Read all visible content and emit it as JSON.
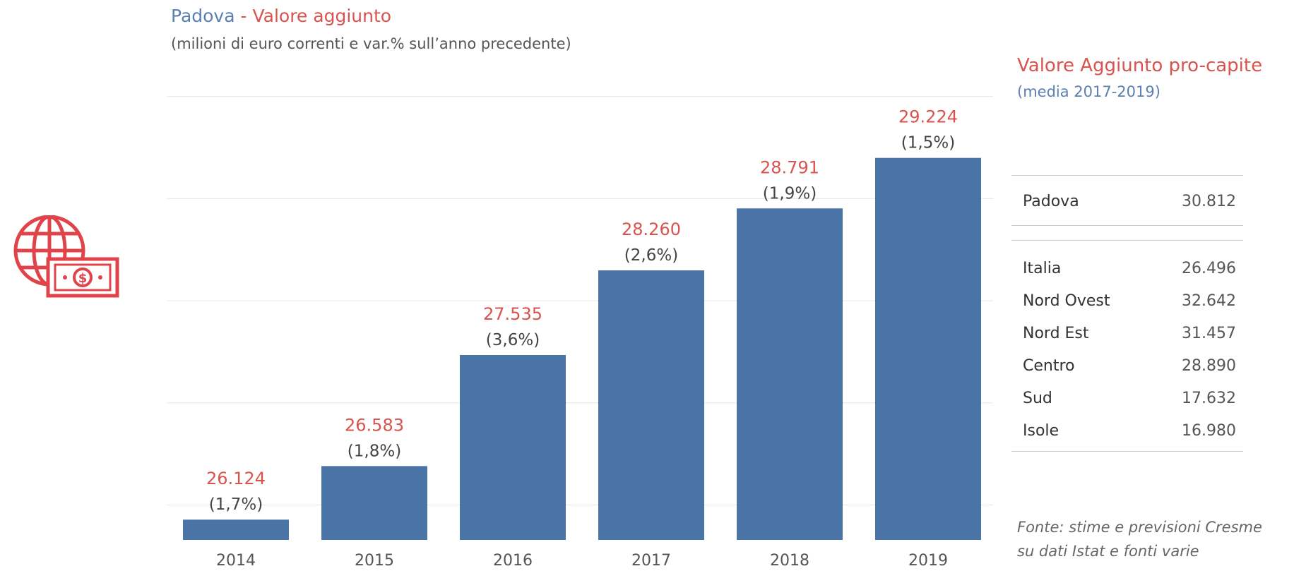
{
  "header": {
    "place": "Padova",
    "sep": " - ",
    "metric": "Valore aggiunto",
    "subtitle": "(milioni di euro correnti e var.% sull’anno precedente)"
  },
  "chart_data": {
    "type": "bar",
    "title": "Padova - Valore aggiunto",
    "subtitle": "(milioni di euro correnti e var.% sull’anno precedente)",
    "categories": [
      "2014",
      "2015",
      "2016",
      "2017",
      "2018",
      "2019"
    ],
    "values": [
      26124,
      26583,
      27535,
      28260,
      28791,
      29224
    ],
    "value_labels": [
      "26.124",
      "26.583",
      "27.535",
      "28.260",
      "28.791",
      "29.224"
    ],
    "pct_labels": [
      "(1,7%)",
      "(1,8%)",
      "(3,6%)",
      "(2,6%)",
      "(1,9%)",
      "(1,5%)"
    ],
    "ylim": [
      25950,
      29700
    ],
    "gridlines": [
      26250,
      27125,
      28000,
      28875,
      29750
    ],
    "grid": true,
    "bar_color": "#4b74a6",
    "value_label_color": "#d9534f"
  },
  "per_capita": {
    "title": "Valore Aggiunto pro-capite",
    "subtitle": "(media 2017-2019)",
    "highlight": {
      "name": "Padova",
      "value": "30.812"
    },
    "rows": [
      {
        "name": "Italia",
        "value": "26.496"
      },
      {
        "name": "Nord Ovest",
        "value": "32.642"
      },
      {
        "name": "Nord Est",
        "value": "31.457"
      },
      {
        "name": "Centro",
        "value": "28.890"
      },
      {
        "name": "Sud",
        "value": "17.632"
      },
      {
        "name": "Isole",
        "value": "16.980"
      }
    ]
  },
  "source": {
    "line1": "Fonte: stime e previsioni Cresme",
    "line2": "su dati Istat e fonti varie"
  },
  "colors": {
    "accent_red": "#d9534f",
    "accent_blue": "#5b7fb0",
    "bar_blue": "#4b74a6"
  },
  "icons": {
    "main": "globe-money-icon"
  }
}
